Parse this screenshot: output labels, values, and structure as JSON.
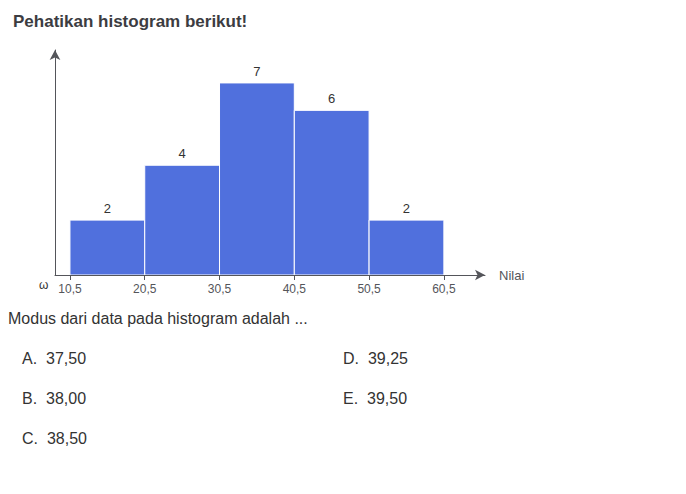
{
  "chart_data": {
    "type": "histogram",
    "title": "Pehatikan histogram berikut!",
    "xlabel": "Nilai",
    "bins": [
      10.5,
      20.5,
      30.5,
      40.5,
      50.5,
      60.5
    ],
    "values": [
      2,
      4,
      7,
      6,
      2
    ],
    "data_labels": true,
    "xlim": [
      8.5,
      66
    ],
    "xticks": [
      {
        "value": 10.5,
        "label": "10,5"
      },
      {
        "value": 20.5,
        "label": "20,5"
      },
      {
        "value": 30.5,
        "label": "30,5"
      },
      {
        "value": 40.5,
        "label": "40,5"
      },
      {
        "value": 50.5,
        "label": "50,5"
      },
      {
        "value": 60.5,
        "label": "60,5"
      }
    ],
    "ylim": [
      0,
      8.2
    ],
    "tick_labels": "x",
    "grid": false,
    "annotations": [
      "ω",
      "Modus dari data pada histogram adalah ...",
      "A.  37,50",
      "B.  38,00",
      "C.  38,50",
      "D.  39,25",
      "E.  39,50"
    ]
  }
}
